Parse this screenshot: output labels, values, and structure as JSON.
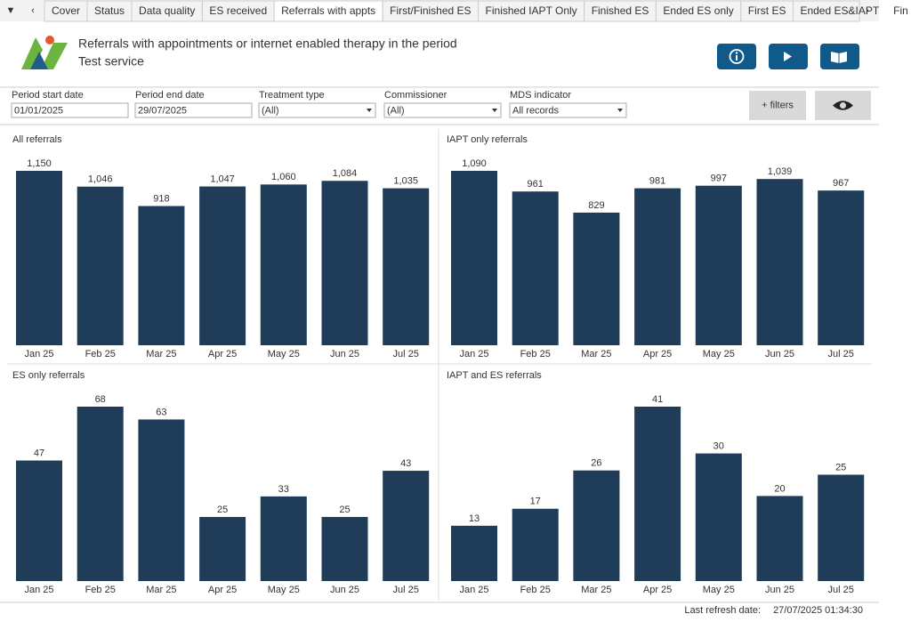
{
  "tabs": [
    "Cover",
    "Status",
    "Data quality",
    "ES received",
    "Referrals with appts",
    "First/Finished ES",
    "Finished IAPT Only",
    "Finished ES",
    "Ended ES only",
    "First ES",
    "Ended ES&IAPT",
    "Fin"
  ],
  "header": {
    "title": "Referrals with appointments or internet enabled therapy in the period",
    "subtitle": "Test service"
  },
  "filters": [
    {
      "label": "Period start date",
      "value": "01/01/2025"
    },
    {
      "label": "Period end date",
      "value": "29/07/2025"
    },
    {
      "label": "Treatment type",
      "value": "(All)"
    },
    {
      "label": "Commissioner",
      "value": "(All)"
    },
    {
      "label": "MDS indicator",
      "value": "All records"
    }
  ],
  "filter_button": "+ filters",
  "chart_data": [
    {
      "type": "bar",
      "title": "All referrals",
      "categories": [
        "Jan 25",
        "Feb 25",
        "Mar 25",
        "Apr 25",
        "May 25",
        "Jun 25",
        "Jul 25"
      ],
      "values": [
        1150,
        1046,
        918,
        1047,
        1060,
        1084,
        1035
      ],
      "value_labels": [
        "1,150",
        "1,046",
        "918",
        "1,047",
        "1,060",
        "1,084",
        "1,035"
      ],
      "color": "#1f3d58"
    },
    {
      "type": "bar",
      "title": "IAPT only referrals",
      "categories": [
        "Jan 25",
        "Feb 25",
        "Mar 25",
        "Apr 25",
        "May 25",
        "Jun 25",
        "Jul 25"
      ],
      "values": [
        1090,
        961,
        829,
        981,
        997,
        1039,
        967
      ],
      "value_labels": [
        "1,090",
        "961",
        "829",
        "981",
        "997",
        "1,039",
        "967"
      ],
      "color": "#1f3d58"
    },
    {
      "type": "bar",
      "title": "ES only referrals",
      "categories": [
        "Jan 25",
        "Feb 25",
        "Mar 25",
        "Apr 25",
        "May 25",
        "Jun 25",
        "Jul 25"
      ],
      "values": [
        47,
        68,
        63,
        25,
        33,
        25,
        43
      ],
      "color": "#1f3d58"
    },
    {
      "type": "bar",
      "title": "IAPT and ES referrals",
      "categories": [
        "Jan 25",
        "Feb 25",
        "Mar 25",
        "Apr 25",
        "May 25",
        "Jun 25",
        "Jul 25"
      ],
      "values": [
        13,
        17,
        26,
        41,
        30,
        20,
        25
      ],
      "color": "#1f3d58"
    }
  ],
  "footer": {
    "label": "Last refresh date:",
    "value": "27/07/2025 01:34:30"
  }
}
